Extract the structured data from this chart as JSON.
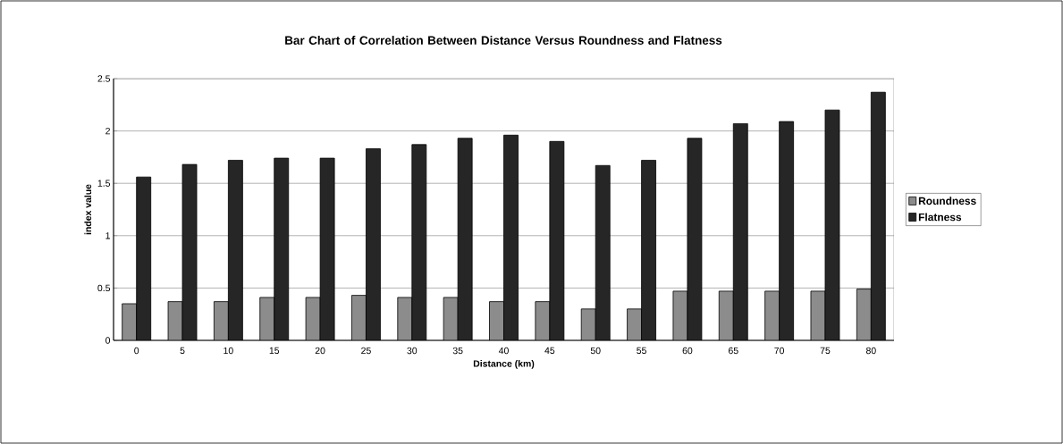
{
  "chart_data": {
    "type": "bar",
    "title": "Bar Chart of Correlation Between Distance Versus Roundness and Flatness",
    "xlabel": "Distance (km)",
    "ylabel": "index value",
    "categories": [
      "0",
      "5",
      "10",
      "15",
      "20",
      "25",
      "30",
      "35",
      "40",
      "45",
      "50",
      "55",
      "60",
      "65",
      "70",
      "75",
      "80"
    ],
    "series": [
      {
        "name": "Roundness",
        "color": "#8c8c8c",
        "values": [
          0.35,
          0.37,
          0.37,
          0.41,
          0.41,
          0.43,
          0.41,
          0.41,
          0.37,
          0.37,
          0.3,
          0.3,
          0.47,
          0.47,
          0.47,
          0.47,
          0.49
        ]
      },
      {
        "name": "Flatness",
        "color": "#262626",
        "values": [
          1.56,
          1.68,
          1.72,
          1.74,
          1.74,
          1.83,
          1.87,
          1.93,
          1.96,
          1.9,
          1.67,
          1.72,
          1.93,
          2.07,
          2.09,
          2.2,
          2.37
        ]
      }
    ],
    "ylim": [
      0,
      2.5
    ],
    "yticks": [
      0,
      0.5,
      1,
      1.5,
      2,
      2.5
    ],
    "grid": "y",
    "legend": "right"
  }
}
